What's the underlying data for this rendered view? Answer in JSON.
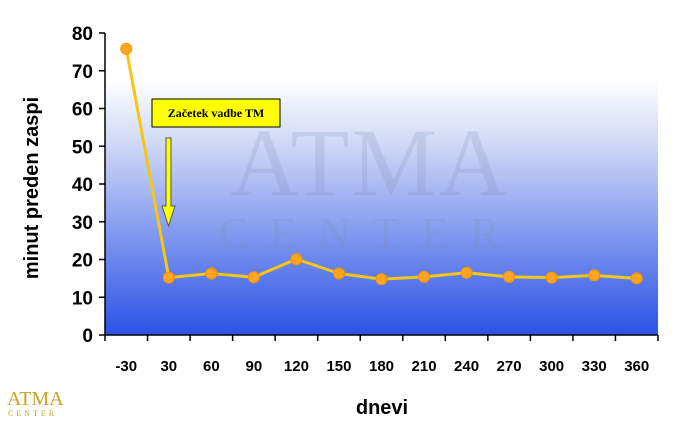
{
  "chart_data": {
    "type": "line",
    "categories": [
      "-30",
      "30",
      "60",
      "90",
      "120",
      "150",
      "180",
      "210",
      "240",
      "270",
      "300",
      "330",
      "360"
    ],
    "values": [
      75.8,
      15.2,
      16.3,
      15.3,
      20.1,
      16.3,
      14.8,
      15.4,
      16.5,
      15.4,
      15.2,
      15.8,
      15.0
    ],
    "xlabel": "dnevi",
    "ylabel": "minut preden zaspi",
    "ylim": [
      0,
      80
    ],
    "yticks": [
      "0",
      "10",
      "20",
      "30",
      "40",
      "50",
      "60",
      "70",
      "80"
    ],
    "grid": false,
    "legend": "none",
    "annotation": {
      "text": "Začetek vadbe TM",
      "points_to_category": "30"
    },
    "line_color": "#f5c518",
    "marker_color": "#ffa520",
    "background_gradient": [
      "#ffffff",
      "#2a52e6"
    ]
  },
  "watermark": {
    "main": "ATMA",
    "sub": "CENTER"
  },
  "logo": {
    "main": "ATMA",
    "sub": "CENTER"
  }
}
